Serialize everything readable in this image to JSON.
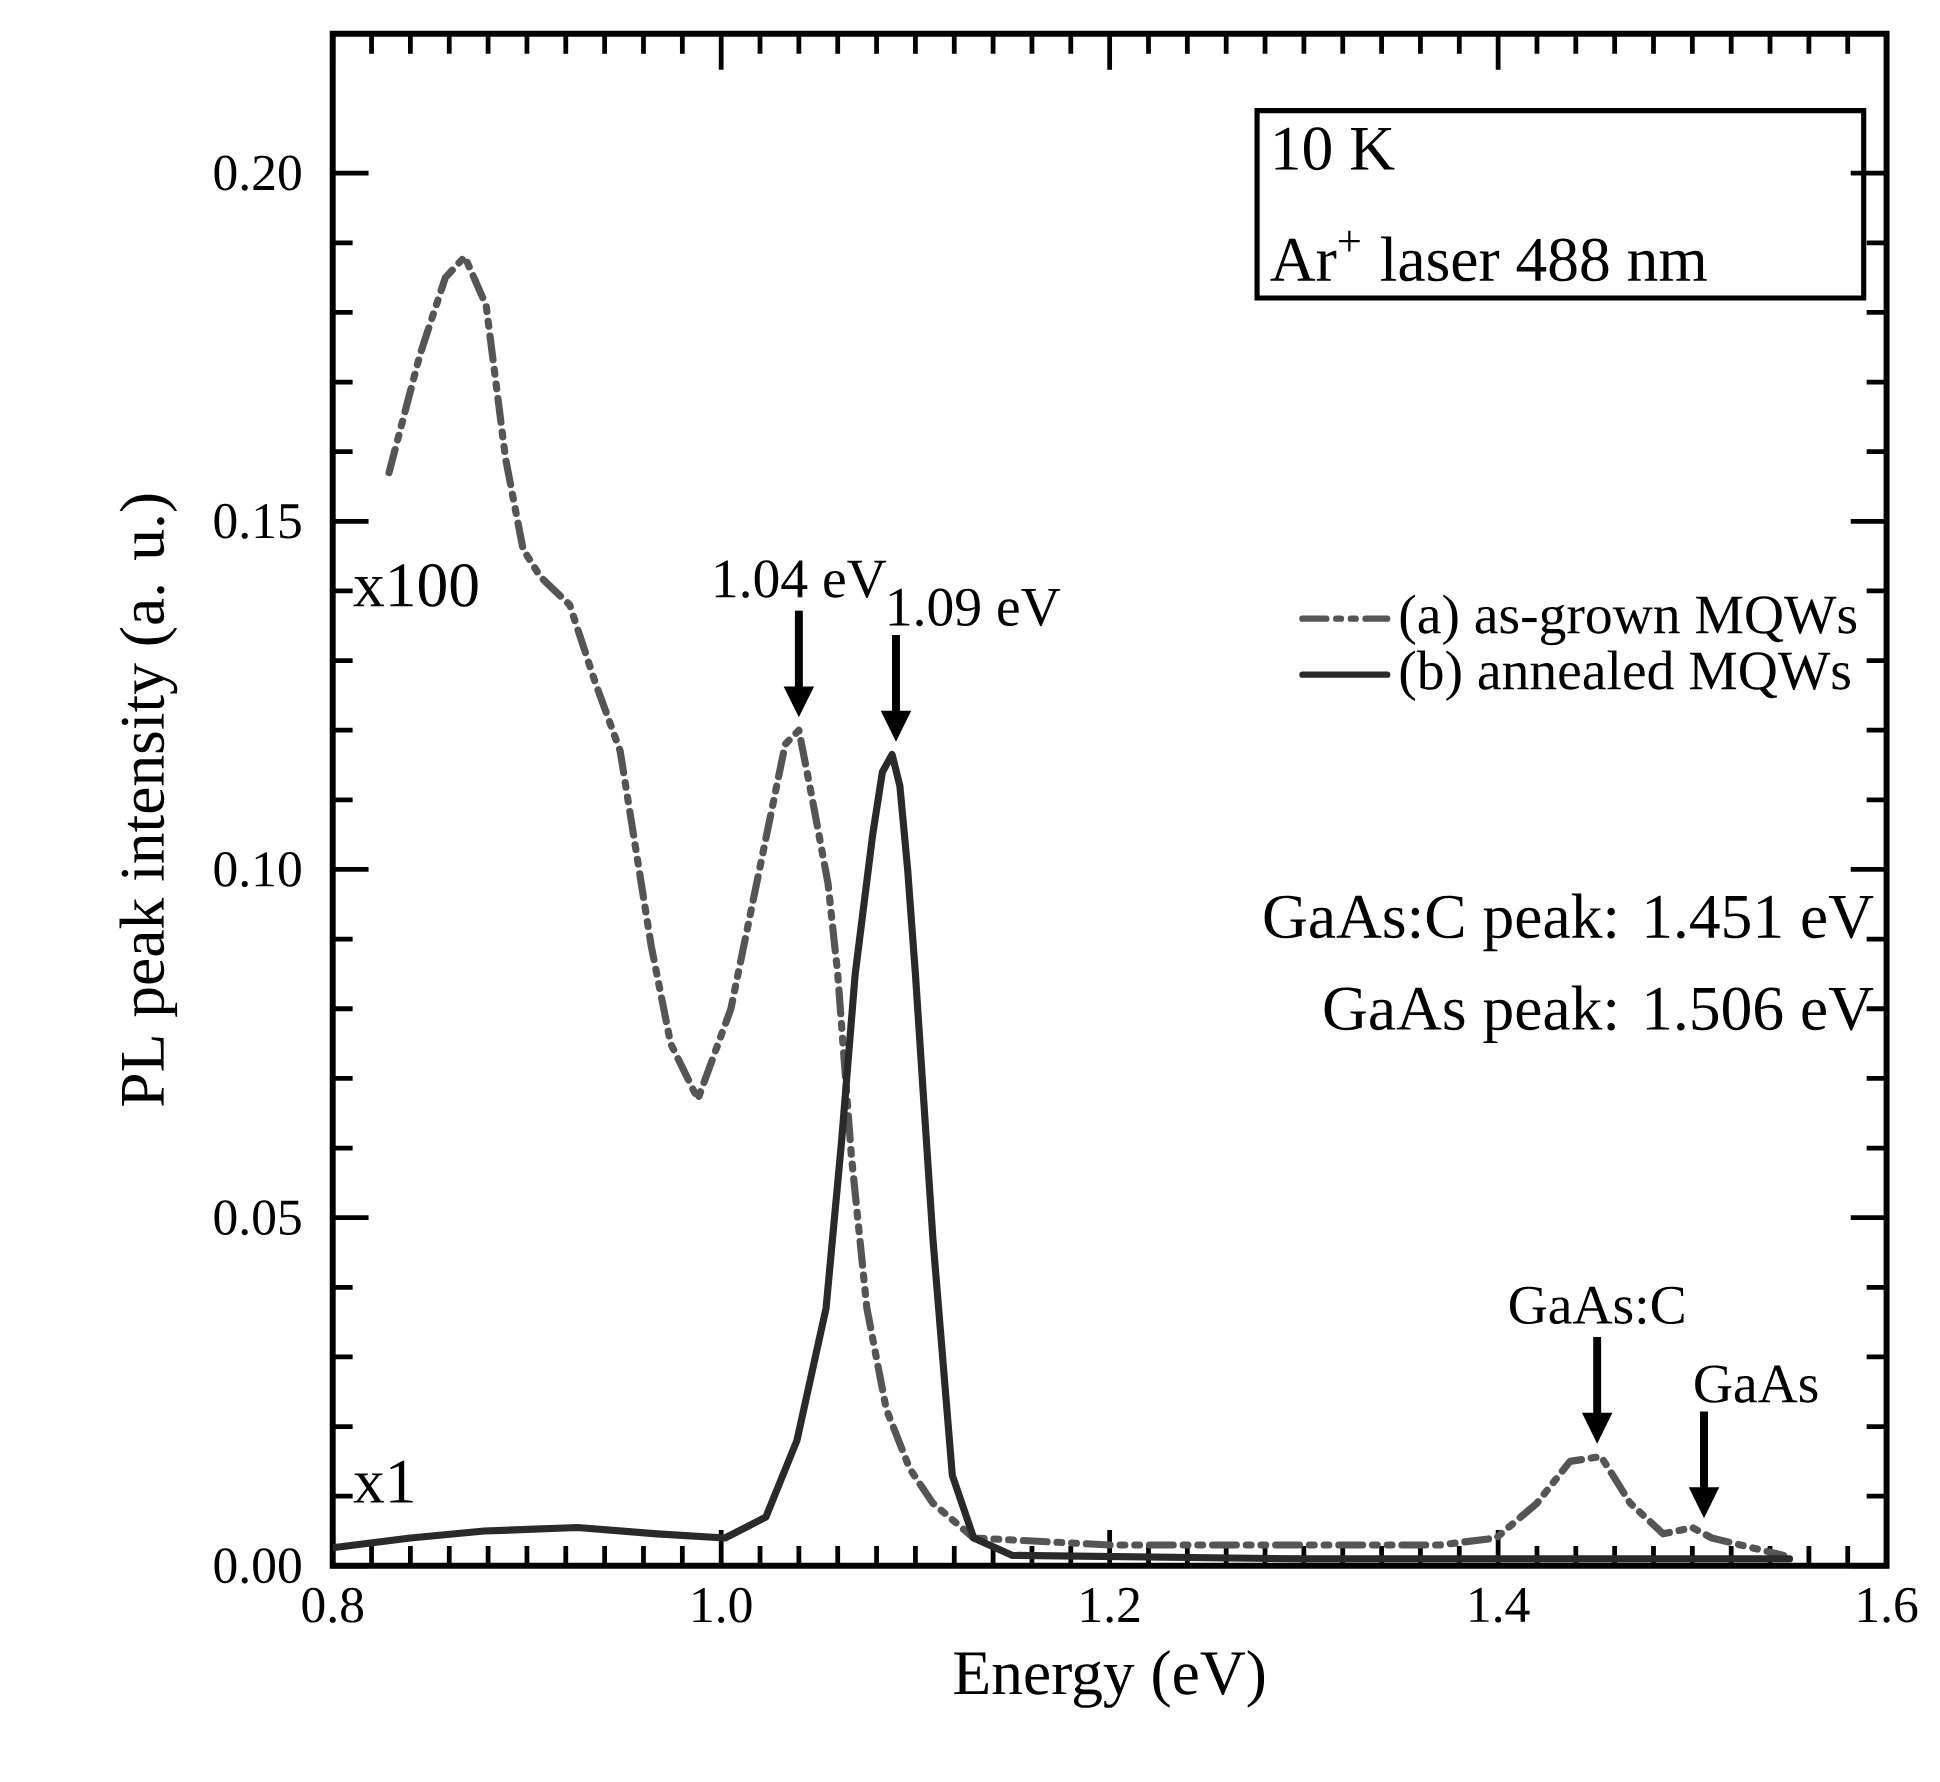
{
  "chart_data": {
    "type": "line",
    "xlabel": "Energy (eV)",
    "ylabel": "PL peak intensity (a. u.)",
    "xlim": [
      0.8,
      1.6
    ],
    "ylim": [
      0,
      0.22
    ],
    "xticks": [
      0.8,
      {
        "value": 1.0,
        "label": "1.0"
      },
      1.2,
      1.4,
      1.6
    ],
    "yticks": [
      {
        "value": 0,
        "label": "0.00"
      },
      0.05,
      {
        "value": 0.1,
        "label": "0.10"
      },
      0.15,
      {
        "value": 0.2,
        "label": "0.20"
      }
    ],
    "grid": false,
    "legend": "right",
    "marker": "none",
    "series": [
      {
        "name": "(a) as-grown MQWs",
        "color": "#555555",
        "line_style": "dashed",
        "x": [
          0.829,
          0.845,
          0.858,
          0.868,
          0.879,
          0.889,
          0.898,
          0.907,
          0.922,
          0.935,
          0.948,
          0.964,
          0.974,
          0.988,
          1.005,
          1.019,
          1.033,
          1.04,
          1.047,
          1.055,
          1.06,
          1.067,
          1.075,
          1.085,
          1.097,
          1.109,
          1.13,
          1.2,
          1.3,
          1.37,
          1.399,
          1.42,
          1.437,
          1.453,
          1.468,
          1.485,
          1.5,
          1.51,
          1.547
        ],
        "values": [
          0.157,
          0.174,
          0.185,
          0.188,
          0.181,
          0.159,
          0.146,
          0.142,
          0.138,
          0.127,
          0.117,
          0.089,
          0.075,
          0.067,
          0.08,
          0.099,
          0.118,
          0.12,
          0.11,
          0.098,
          0.085,
          0.059,
          0.037,
          0.0225,
          0.014,
          0.009,
          0.004,
          0.003,
          0.003,
          0.003,
          0.004,
          0.009,
          0.015,
          0.0157,
          0.009,
          0.0046,
          0.0055,
          0.004,
          0.0015
        ]
      },
      {
        "name": "(b) annealed MQWs",
        "color": "#2a2a2a",
        "line_style": "solid",
        "x": [
          0.8,
          0.84,
          0.878,
          0.926,
          0.967,
          1.002,
          1.023,
          1.039,
          1.054,
          1.062,
          1.069,
          1.078,
          1.083,
          1.088,
          1.092,
          1.096,
          1.1,
          1.104,
          1.109,
          1.119,
          1.13,
          1.15,
          1.3,
          1.45,
          1.55
        ],
        "values": [
          0.0026,
          0.004,
          0.005,
          0.0055,
          0.0046,
          0.004,
          0.007,
          0.018,
          0.037,
          0.061,
          0.085,
          0.105,
          0.114,
          0.1165,
          0.112,
          0.1,
          0.085,
          0.068,
          0.047,
          0.013,
          0.004,
          0.0015,
          0.001,
          0.001,
          0.001
        ]
      }
    ],
    "annotations": [
      "10 K",
      "Ar$^{+}$ laser 488 nm",
      "x100",
      "x1",
      "GaAs:C peak: 1.451 eV",
      "GaAs peak: 1.506 eV",
      {
        "text": "1.04 eV",
        "x": 1.04,
        "y": 0.12
      },
      {
        "text": "1.09 eV",
        "x": 1.09,
        "y": 0.1165
      },
      {
        "text": "GaAs:C",
        "x": 1.451,
        "y": 0.0157
      },
      {
        "text": "GaAs",
        "x": 1.506,
        "y": 0.005
      }
    ]
  }
}
